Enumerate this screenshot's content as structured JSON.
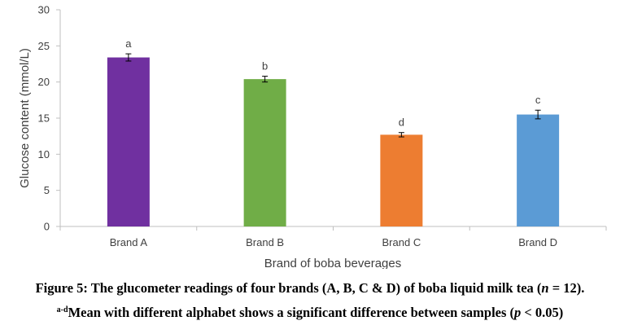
{
  "chart_data": {
    "type": "bar",
    "categories": [
      "Brand A",
      "Brand B",
      "Brand C",
      "Brand D"
    ],
    "values": [
      23.4,
      20.4,
      12.7,
      15.5
    ],
    "errors": [
      0.5,
      0.4,
      0.3,
      0.6
    ],
    "significance_letters": [
      "a",
      "b",
      "d",
      "c"
    ],
    "colors": [
      "#7030A0",
      "#70AD47",
      "#ED7D31",
      "#5B9BD5"
    ],
    "xlabel": "Brand of boba beverages",
    "ylabel": "Glucose content (mmol/L)",
    "ylim": [
      0,
      30
    ],
    "yticks": [
      0,
      5,
      10,
      15,
      20,
      25,
      30
    ],
    "grid": false,
    "legend": "none"
  },
  "caption": {
    "line1_prefix": "Figure 5: The glucometer readings of four brands (A, B, C & D) of boba liquid milk tea (",
    "line1_var": "n",
    "line1_suffix": " = 12).",
    "line2_sup": "a-d",
    "line2_text": "Mean with different alphabet shows a significant difference between samples (",
    "line2_var": "p",
    "line2_suffix": " < 0.05)"
  }
}
